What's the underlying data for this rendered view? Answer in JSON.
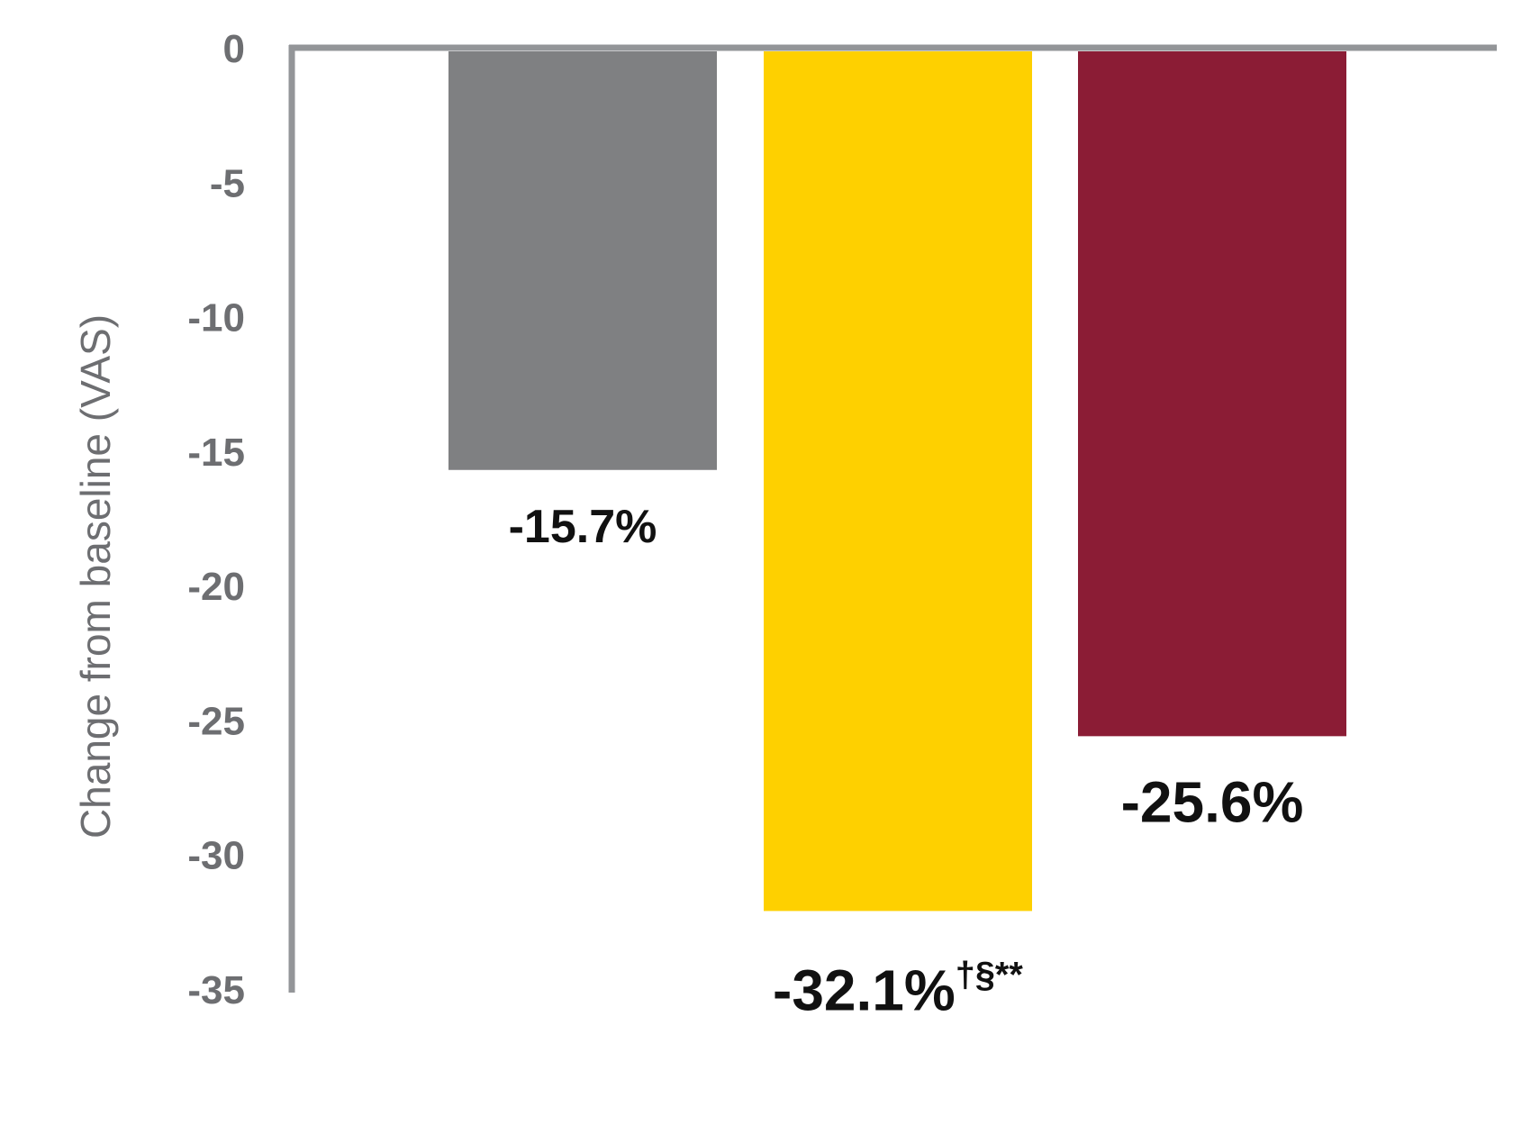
{
  "chart_data": {
    "type": "bar",
    "title": "",
    "xlabel": "",
    "ylabel": "Change from baseline (VAS)",
    "ylim": [
      -35,
      0
    ],
    "yticks": [
      0,
      -5,
      -10,
      -15,
      -20,
      -25,
      -30,
      -35
    ],
    "ytick_labels": [
      "0",
      "-5",
      "-10",
      "-15",
      "-20",
      "-25",
      "-30",
      "-35"
    ],
    "grid": false,
    "legend": "none",
    "series": [
      {
        "values": [
          -15.7,
          -32.1,
          -25.6
        ],
        "labels": [
          "-15.7%",
          "-32.1%",
          "-25.6%"
        ],
        "label_superscripts": [
          "",
          "†§**",
          ""
        ],
        "colors": [
          "#7f8082",
          "#fed000",
          "#8b1c35"
        ]
      }
    ]
  }
}
